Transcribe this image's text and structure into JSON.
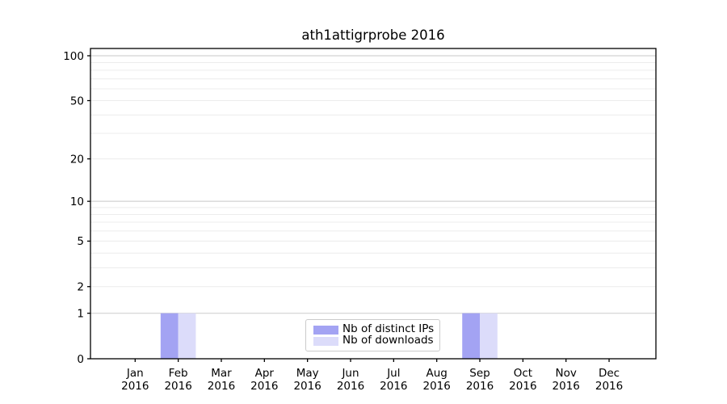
{
  "chart_data": {
    "type": "bar",
    "title": "ath1attigrprobe 2016",
    "year": "2016",
    "categories": [
      "Jan",
      "Feb",
      "Mar",
      "Apr",
      "May",
      "Jun",
      "Jul",
      "Aug",
      "Sep",
      "Oct",
      "Nov",
      "Dec"
    ],
    "series": [
      {
        "key": "distinct-ips",
        "name": "Nb of distinct IPs",
        "color": "#a3a3f3",
        "values": [
          0,
          1,
          0,
          0,
          0,
          0,
          0,
          0,
          1,
          0,
          0,
          0
        ]
      },
      {
        "key": "downloads",
        "name": "Nb of downloads",
        "color": "#dcdcfa",
        "values": [
          0,
          1,
          0,
          0,
          0,
          0,
          0,
          0,
          1,
          0,
          0,
          0
        ]
      }
    ],
    "y_ticks": [
      0,
      1,
      2,
      5,
      10,
      20,
      50,
      100
    ],
    "y_scale": "log10(value+1)",
    "ylim": [
      0,
      112
    ],
    "y_gridlines": {
      "major": [
        1,
        10,
        100
      ],
      "minor": [
        2,
        3,
        4,
        5,
        6,
        7,
        8,
        9,
        20,
        30,
        40,
        50,
        60,
        70,
        80,
        90
      ]
    },
    "grid": true,
    "legend_position": "lower center",
    "colors": {
      "axis": "#000000",
      "major_grid": "#d2d2d2",
      "minor_grid": "#ececec",
      "background": "#ffffff"
    }
  }
}
